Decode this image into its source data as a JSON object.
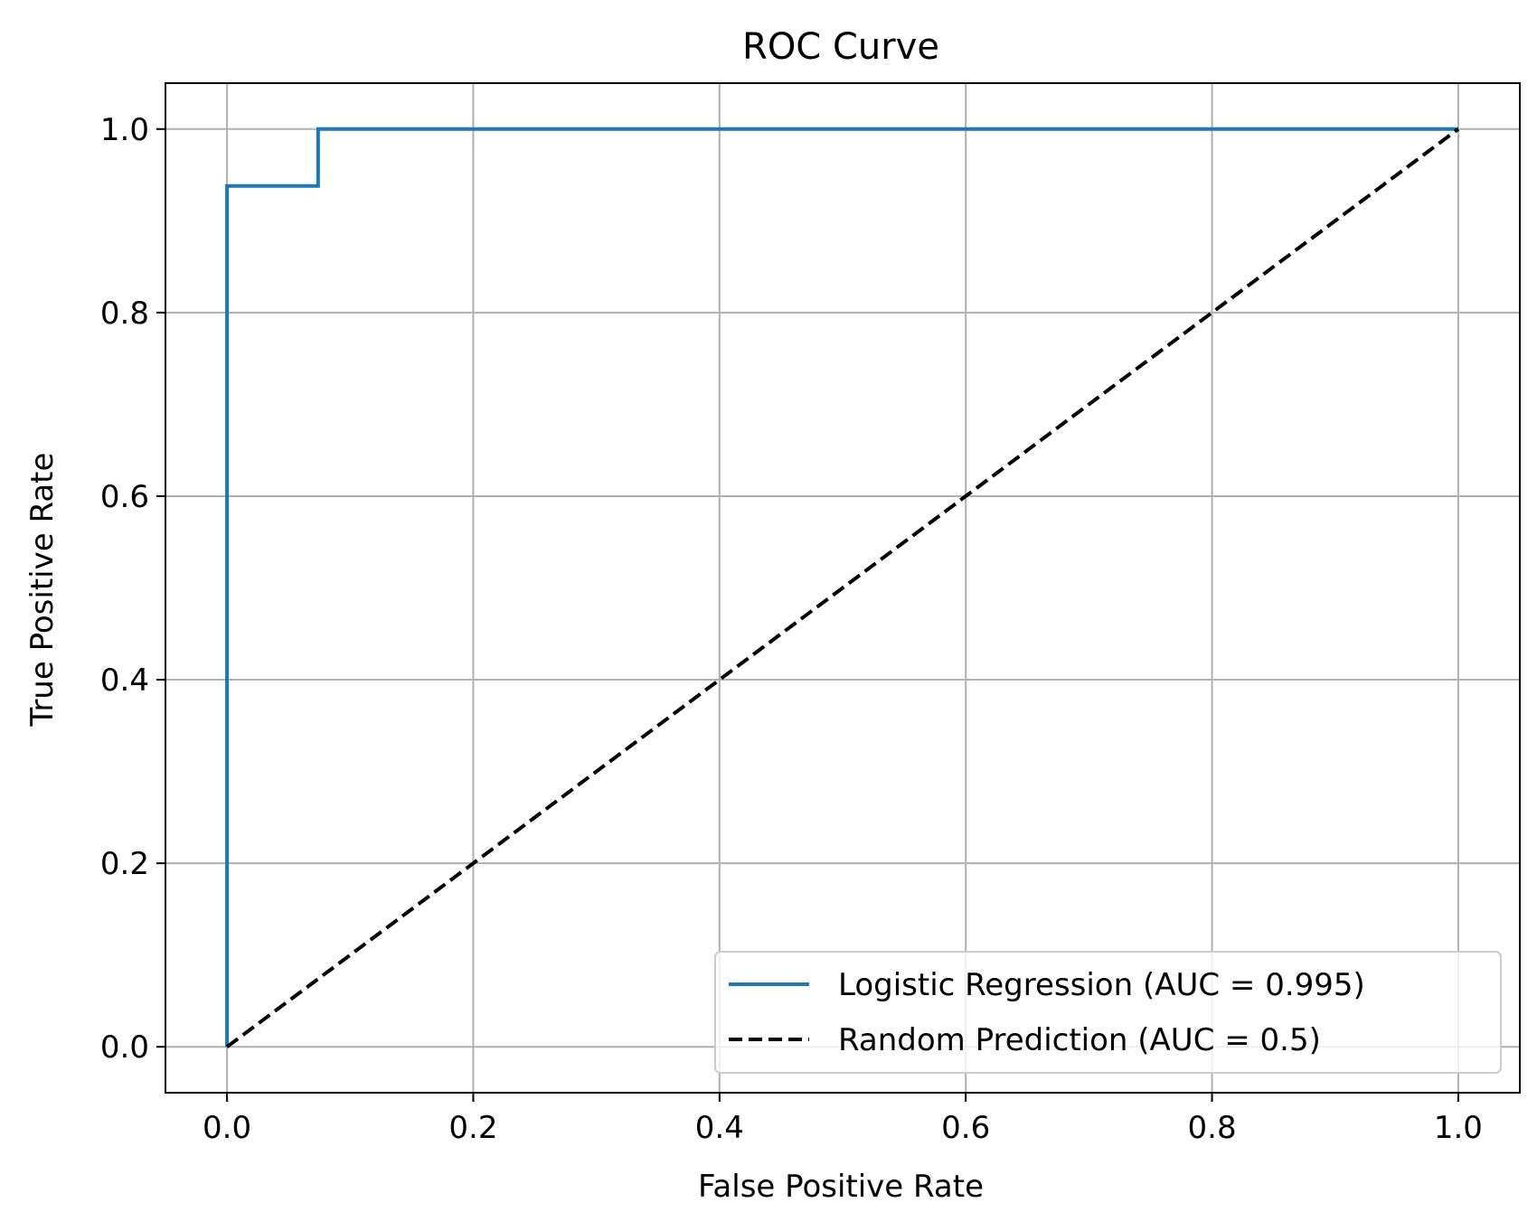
{
  "chart_data": {
    "type": "line",
    "title": "ROC Curve",
    "xlabel": "False Positive Rate",
    "ylabel": "True Positive Rate",
    "xlim": [
      -0.05,
      1.05
    ],
    "ylim": [
      -0.05,
      1.05
    ],
    "x_ticks": [
      "0.0",
      "0.2",
      "0.4",
      "0.6",
      "0.8",
      "1.0"
    ],
    "y_ticks": [
      "0.0",
      "0.2",
      "0.4",
      "0.6",
      "0.8",
      "1.0"
    ],
    "x_tick_values": [
      0,
      0.2,
      0.4,
      0.6,
      0.8,
      1.0
    ],
    "y_tick_values": [
      0,
      0.2,
      0.4,
      0.6,
      0.8,
      1.0
    ],
    "grid": true,
    "legend_position": "lower-right",
    "series": [
      {
        "name": "Logistic Regression (AUC = 0.995)",
        "color": "#1f77b4",
        "style": "solid",
        "x": [
          0.0,
          0.0,
          0.074,
          0.074,
          1.0
        ],
        "y": [
          0.0,
          0.938,
          0.938,
          1.0,
          1.0
        ]
      },
      {
        "name": "Random Prediction (AUC = 0.5)",
        "color": "#000000",
        "style": "dashed",
        "x": [
          0.0,
          1.0
        ],
        "y": [
          0.0,
          1.0
        ]
      }
    ]
  }
}
